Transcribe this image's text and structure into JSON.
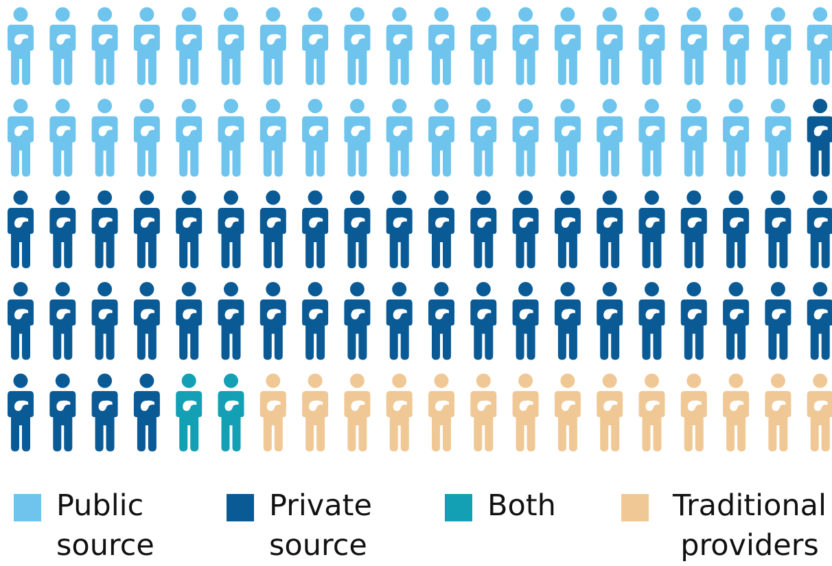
{
  "chart_data": {
    "type": "waffle",
    "categories": [
      "Public source",
      "Private source",
      "Both",
      "Traditional providers"
    ],
    "values": [
      39,
      45,
      2,
      14
    ],
    "colors": [
      "#6ec4ec",
      "#0a5a96",
      "#14a0b4",
      "#f0c896"
    ]
  }
}
